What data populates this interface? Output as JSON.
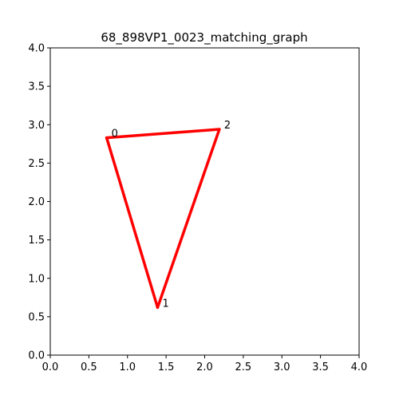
{
  "chart_data": {
    "type": "line",
    "title": "68_898VP1_0023_matching_graph",
    "xlabel": "",
    "ylabel": "",
    "xlim": [
      0.0,
      4.0
    ],
    "ylim": [
      0.0,
      4.0
    ],
    "xticks": [
      "0.0",
      "0.5",
      "1.0",
      "1.5",
      "2.0",
      "2.5",
      "3.0",
      "3.5",
      "4.0"
    ],
    "yticks": [
      "0.0",
      "0.5",
      "1.0",
      "1.5",
      "2.0",
      "2.5",
      "3.0",
      "3.5",
      "4.0"
    ],
    "grid": false,
    "edge_color": "#ff0000",
    "nodes": [
      {
        "label": "0",
        "x": 0.73,
        "y": 2.83
      },
      {
        "label": "1",
        "x": 1.39,
        "y": 0.62
      },
      {
        "label": "2",
        "x": 2.19,
        "y": 2.94
      }
    ],
    "edges": [
      {
        "from": "0",
        "to": "2"
      },
      {
        "from": "0",
        "to": "1"
      },
      {
        "from": "1",
        "to": "2"
      }
    ]
  }
}
